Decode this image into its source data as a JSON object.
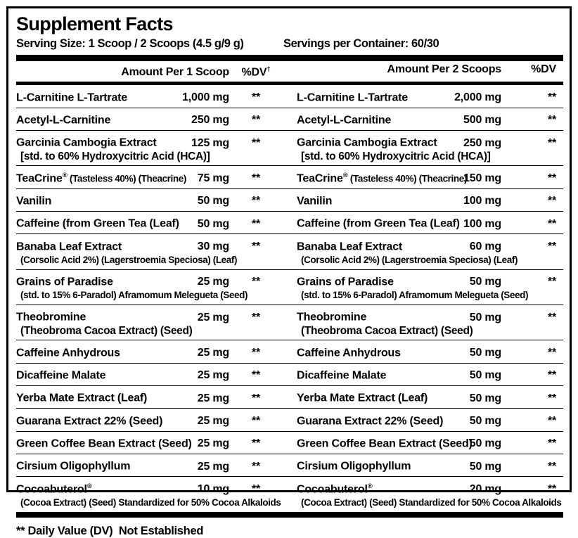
{
  "title": "Supplement Facts",
  "serving_size": "Serving Size: 1 Scoop / 2 Scoops (4.5 g/9 g)",
  "servings_per_container": "Servings per Container: 60/30",
  "header": {
    "left_amount": "Amount Per 1 Scoop",
    "left_dv": "%DV",
    "left_dv_sup": "†",
    "right_amount": "Amount Per 2 Scoops",
    "right_dv": "%DV"
  },
  "colors": {
    "text": "#000000",
    "background": "#ffffff",
    "rule": "#000000"
  },
  "rows": [
    {
      "name": "L-Carnitine L-Tartrate",
      "amount1": "1,000 mg",
      "amount2": "2,000 mg",
      "dv": "**"
    },
    {
      "name": "Acetyl-L-Carnitine",
      "amount1": "250 mg",
      "amount2": "500 mg",
      "dv": "**"
    },
    {
      "name": "Garcinia Cambogia Extract",
      "sub": "[std. to 60% Hydroxycitric Acid (HCA)]",
      "sub_cond": false,
      "amount1": "125 mg",
      "amount2": "250 mg",
      "dv": "**"
    },
    {
      "name": "TeaCrine",
      "name_sup": "®",
      "name_cond": " (Tasteless 40%) (Theacrine)",
      "amount1": "75 mg",
      "amount2": "150 mg",
      "dv": "**"
    },
    {
      "name": "Vanilin",
      "amount1": "50 mg",
      "amount2": "100 mg",
      "dv": "**"
    },
    {
      "name": "Caffeine (from Green Tea (Leaf)",
      "amount1": "50 mg",
      "amount2": "100 mg",
      "dv": "**"
    },
    {
      "name": "Banaba Leaf Extract",
      "sub": "(Corsolic Acid 2%) (Lagerstroemia Speciosa) (Leaf)",
      "sub_cond": true,
      "amount1": "30 mg",
      "amount2": "60 mg",
      "dv": "**"
    },
    {
      "name": "Grains of Paradise",
      "sub": "(std. to 15% 6-Paradol) Aframomum Melegueta (Seed)",
      "sub_cond": true,
      "amount1": "25 mg",
      "amount2": "50 mg",
      "dv": "**"
    },
    {
      "name": "Theobromine",
      "sub": "(Theobroma Cacoa Extract) (Seed)",
      "sub_cond": false,
      "amount1": "25 mg",
      "amount2": "50 mg",
      "dv": "**"
    },
    {
      "name": "Caffeine Anhydrous",
      "amount1": "25 mg",
      "amount2": "50 mg",
      "dv": "**"
    },
    {
      "name": "Dicaffeine Malate",
      "amount1": "25 mg",
      "amount2": "50 mg",
      "dv": "**"
    },
    {
      "name": "Yerba Mate Extract (Leaf)",
      "amount1": "25 mg",
      "amount2": "50 mg",
      "dv": "**"
    },
    {
      "name": "Guarana Extract 22% (Seed)",
      "amount1": "25 mg",
      "amount2": "50 mg",
      "dv": "**"
    },
    {
      "name": "Green Coffee Bean Extract (Seed)",
      "amount1": "25 mg",
      "amount2": "50 mg",
      "dv": "**"
    },
    {
      "name": "Cirsium Oligophyllum",
      "amount1": "25 mg",
      "amount2": "50 mg",
      "dv": "**"
    },
    {
      "name": "Cocoabuterol",
      "name_sup": "®",
      "sub": "(Cocoa Extract) (Seed) Standardized for 50% Cocoa Alkaloids",
      "sub_cond": true,
      "amount1": "10 mg",
      "amount2": "20 mg",
      "dv": "**"
    }
  ],
  "footnote": "** Daily Value (DV)  Not Established"
}
